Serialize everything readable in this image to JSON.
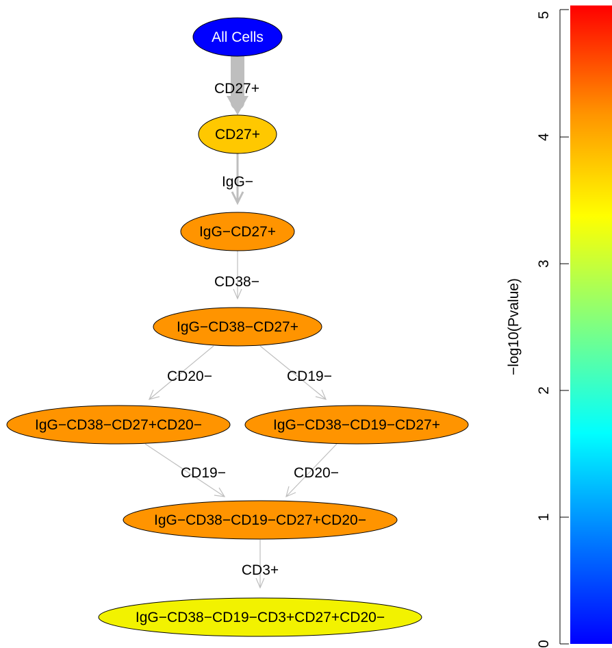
{
  "diagram": {
    "nodes": [
      {
        "id": "n0",
        "label": "All Cells",
        "color": "#0000FF",
        "text_color": "#FFFFFF"
      },
      {
        "id": "n1",
        "label": "CD27+",
        "color": "#FFC800",
        "text_color": "#000000"
      },
      {
        "id": "n2",
        "label": "IgG−CD27+",
        "color": "#FF9400",
        "text_color": "#000000"
      },
      {
        "id": "n3",
        "label": "IgG−CD38−CD27+",
        "color": "#FF9400",
        "text_color": "#000000"
      },
      {
        "id": "n4",
        "label": "IgG−CD38−CD27+CD20−",
        "color": "#FF9400",
        "text_color": "#000000"
      },
      {
        "id": "n5",
        "label": "IgG−CD38−CD19−CD27+",
        "color": "#FF9400",
        "text_color": "#000000"
      },
      {
        "id": "n6",
        "label": "IgG−CD38−CD19−CD27+CD20−",
        "color": "#FF9400",
        "text_color": "#000000"
      },
      {
        "id": "n7",
        "label": "IgG−CD38−CD19−CD3+CD27+CD20−",
        "color": "#F2F200",
        "text_color": "#000000"
      }
    ],
    "edges": [
      {
        "from": "n0",
        "to": "n1",
        "label": "CD27+",
        "weight": "heavy"
      },
      {
        "from": "n1",
        "to": "n2",
        "label": "IgG−",
        "weight": "medium"
      },
      {
        "from": "n2",
        "to": "n3",
        "label": "CD38−",
        "weight": "thin"
      },
      {
        "from": "n3",
        "to": "n4",
        "label": "CD20−",
        "weight": "thin"
      },
      {
        "from": "n3",
        "to": "n5",
        "label": "CD19−",
        "weight": "thin"
      },
      {
        "from": "n4",
        "to": "n6",
        "label": "CD19−",
        "weight": "thin"
      },
      {
        "from": "n5",
        "to": "n6",
        "label": "CD20−",
        "weight": "thin"
      },
      {
        "from": "n6",
        "to": "n7",
        "label": "CD3+",
        "weight": "thin"
      }
    ]
  },
  "colorbar": {
    "title": "−log10(Pvalue)",
    "range": [
      0,
      5
    ],
    "ticks": [
      "0",
      "1",
      "2",
      "3",
      "4",
      "5"
    ],
    "palette": "rainbow blue-to-red"
  }
}
